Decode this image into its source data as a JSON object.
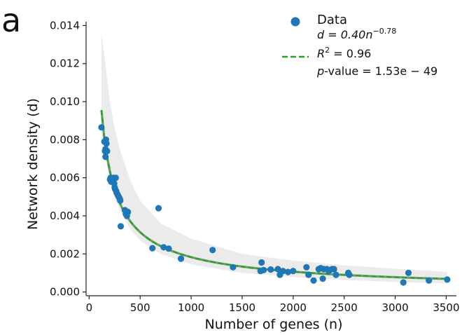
{
  "panel_label": "a",
  "chart_data": {
    "type": "scatter",
    "xlabel": "Number of genes (n)",
    "ylabel": "Network density (d)",
    "xlim": [
      -30,
      3600
    ],
    "ylim": [
      -0.0002,
      0.0142
    ],
    "xticks": [
      0,
      500,
      1000,
      1500,
      2000,
      2500,
      3000,
      3500
    ],
    "xtick_labels": [
      "0",
      "500",
      "1000",
      "1500",
      "2000",
      "2500",
      "3000",
      "3500"
    ],
    "yticks": [
      0.0,
      0.002,
      0.004,
      0.006,
      0.008,
      0.01,
      0.012,
      0.014
    ],
    "ytick_labels": [
      "0.000",
      "0.002",
      "0.004",
      "0.006",
      "0.008",
      "0.010",
      "0.012",
      "0.014"
    ],
    "grid": false,
    "legend_position": "top-right",
    "legend": {
      "data_label": "Data",
      "fit_line1_prefix": "d = 0.40n",
      "fit_line1_exp": "−0.78",
      "fit_line2_base": "R",
      "fit_line2_sup": "2",
      "fit_line2_rest": " = 0.96",
      "fit_line3_italic": "p",
      "fit_line3_rest": "-value = 1.53e − 49"
    },
    "colors": {
      "points": "#1f77b4",
      "fit": "#2ca02c",
      "fit_outline": "#1a6b1a",
      "confidence_band": "#e8e8e8"
    },
    "fit": {
      "a": 0.4,
      "b": -0.78,
      "x_range": [
        120,
        3510
      ]
    },
    "band": {
      "x": [
        120,
        150,
        200,
        250,
        300,
        400,
        500,
        700,
        1000,
        1500,
        2000,
        2500,
        3000,
        3510
      ],
      "upper": [
        0.0136,
        0.0124,
        0.0101,
        0.0086,
        0.0075,
        0.0059,
        0.0048,
        0.0036,
        0.0028,
        0.002,
        0.00165,
        0.0014,
        0.00122,
        0.00105
      ],
      "lower": [
        0.0085,
        0.0073,
        0.006,
        0.005,
        0.0043,
        0.0033,
        0.0027,
        0.002,
        0.00145,
        0.001,
        0.00078,
        0.00063,
        0.00053,
        0.00045
      ]
    },
    "points": [
      [
        120,
        0.00865
      ],
      [
        150,
        0.0079
      ],
      [
        160,
        0.0075
      ],
      [
        165,
        0.008
      ],
      [
        155,
        0.0074
      ],
      [
        170,
        0.0078
      ],
      [
        175,
        0.0074
      ],
      [
        160,
        0.0071
      ],
      [
        210,
        0.006
      ],
      [
        205,
        0.0059
      ],
      [
        215,
        0.0058
      ],
      [
        220,
        0.0059
      ],
      [
        240,
        0.006
      ],
      [
        245,
        0.0057
      ],
      [
        250,
        0.0055
      ],
      [
        255,
        0.0054
      ],
      [
        260,
        0.006
      ],
      [
        265,
        0.0053
      ],
      [
        270,
        0.0052
      ],
      [
        280,
        0.0051
      ],
      [
        290,
        0.005
      ],
      [
        300,
        0.0049
      ],
      [
        305,
        0.0048
      ],
      [
        310,
        0.00345
      ],
      [
        350,
        0.0043
      ],
      [
        360,
        0.0041
      ],
      [
        370,
        0.004
      ],
      [
        380,
        0.0042
      ],
      [
        620,
        0.0023
      ],
      [
        680,
        0.0044
      ],
      [
        730,
        0.00235
      ],
      [
        780,
        0.00228
      ],
      [
        900,
        0.00175
      ],
      [
        1210,
        0.0022
      ],
      [
        1410,
        0.0013
      ],
      [
        1680,
        0.0011
      ],
      [
        1690,
        0.00155
      ],
      [
        1710,
        0.00115
      ],
      [
        1780,
        0.00118
      ],
      [
        1850,
        0.0012
      ],
      [
        1870,
        0.0009
      ],
      [
        1900,
        0.0011
      ],
      [
        1950,
        0.00105
      ],
      [
        2000,
        0.0011
      ],
      [
        2130,
        0.0013
      ],
      [
        2150,
        0.0009
      ],
      [
        2200,
        0.0006
      ],
      [
        2250,
        0.0012
      ],
      [
        2270,
        0.00125
      ],
      [
        2290,
        0.0007
      ],
      [
        2300,
        0.0012
      ],
      [
        2330,
        0.0012
      ],
      [
        2350,
        0.0011
      ],
      [
        2380,
        0.0012
      ],
      [
        2400,
        0.0012
      ],
      [
        2420,
        0.0009
      ],
      [
        2540,
        0.001
      ],
      [
        2550,
        0.0009
      ],
      [
        3080,
        0.0005
      ],
      [
        3130,
        0.001
      ],
      [
        3330,
        0.0006
      ],
      [
        3510,
        0.00065
      ]
    ]
  }
}
